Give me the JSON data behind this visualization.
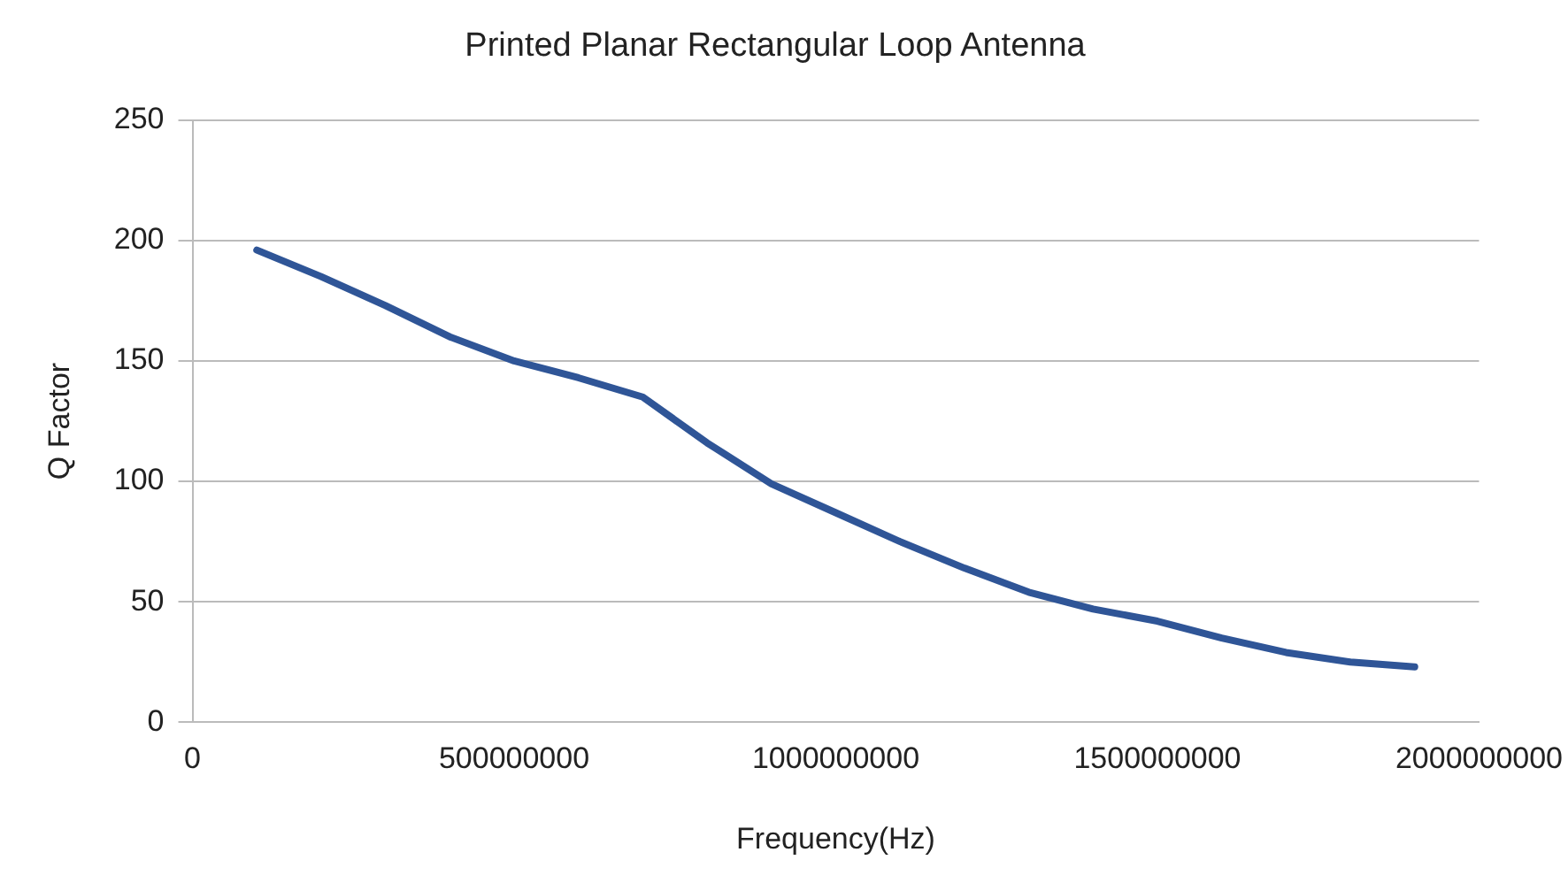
{
  "chart_data": {
    "type": "line",
    "title": "Printed Planar Rectangular Loop Antenna",
    "xlabel": "Frequency(Hz)",
    "ylabel": "Q Factor",
    "x": [
      100000000,
      200000000,
      300000000,
      400000000,
      500000000,
      600000000,
      700000000,
      800000000,
      900000000,
      1000000000,
      1100000000,
      1200000000,
      1300000000,
      1400000000,
      1500000000,
      1600000000,
      1700000000,
      1800000000,
      1900000000
    ],
    "series": [
      {
        "color": "#2f5597",
        "values": [
          196,
          185,
          173,
          160,
          150,
          143,
          135,
          116,
          99,
          87,
          75,
          64,
          54,
          47,
          42,
          35,
          29,
          25,
          23
        ]
      }
    ],
    "xlim": [
      0,
      2000000000
    ],
    "xticks": [
      0,
      500000000,
      1000000000,
      1500000000,
      2000000000
    ],
    "ylim": [
      0,
      250
    ],
    "yticks": [
      0,
      50,
      100,
      150,
      200,
      250
    ],
    "grid": "y",
    "marker": "none",
    "line_style": "solid"
  }
}
